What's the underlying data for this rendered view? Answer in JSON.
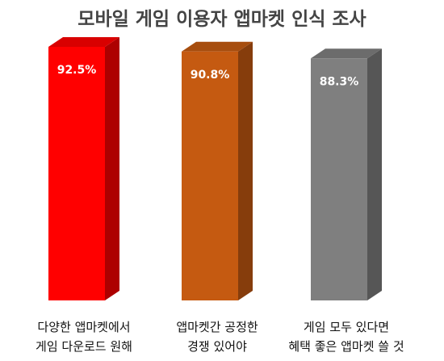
{
  "chart_data": {
    "type": "bar3d",
    "title": "모바일 게임 이용자 앱마켓 인식 조사",
    "categories": [
      "다양한 앱마켓에서\n게임 다운로드 원해",
      "앱마켓간 공정한\n경쟁 있어야",
      "게임 모두 있다면\n혜택 좋은 앱마켓 쓸 것"
    ],
    "values": [
      92.5,
      90.8,
      88.3
    ],
    "value_labels": [
      "92.5%",
      "90.8%",
      "88.3%"
    ],
    "colors": [
      "#ff0000",
      "#c55a11",
      "#7f7f7f"
    ]
  }
}
